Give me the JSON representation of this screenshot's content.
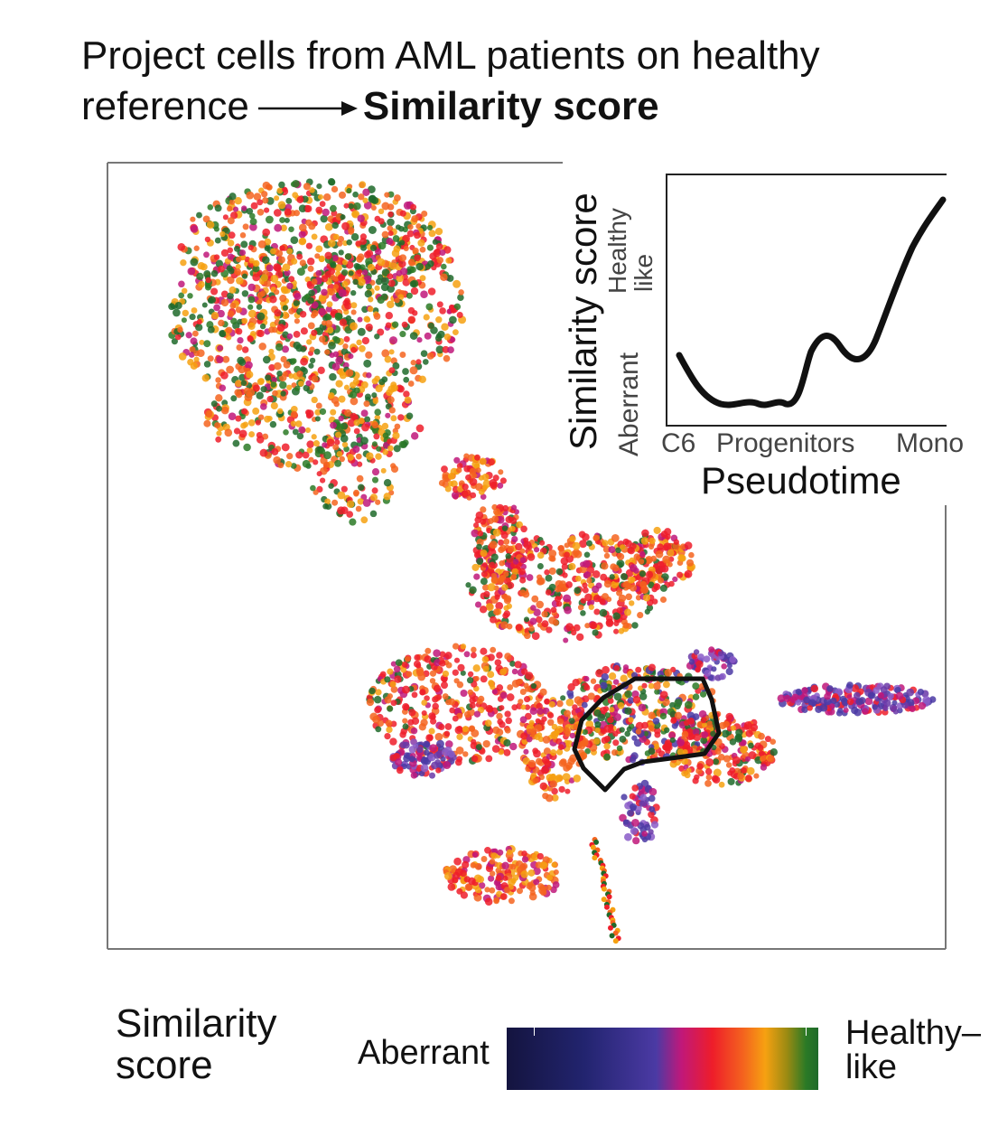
{
  "title": {
    "line1": "Project cells from AML patients on healthy",
    "line2_prefix": "reference",
    "line2_bold": "Similarity score"
  },
  "inset": {
    "xlabel": "Pseudotime",
    "ylabel": "Similarity score",
    "y_low": "Aberrant",
    "y_high_1": "Healthy",
    "y_high_2": "like",
    "x_ticks": [
      "C6",
      "Progenitors",
      "Mono"
    ]
  },
  "legend": {
    "title_1": "Similarity",
    "title_2": "score",
    "low": "Aberrant",
    "high_1": "Healthy–",
    "high_2": "like"
  },
  "colors": {
    "aberrant": "#22246f",
    "mid": "#ee1d2a",
    "healthy": "#1f6a2a"
  }
}
